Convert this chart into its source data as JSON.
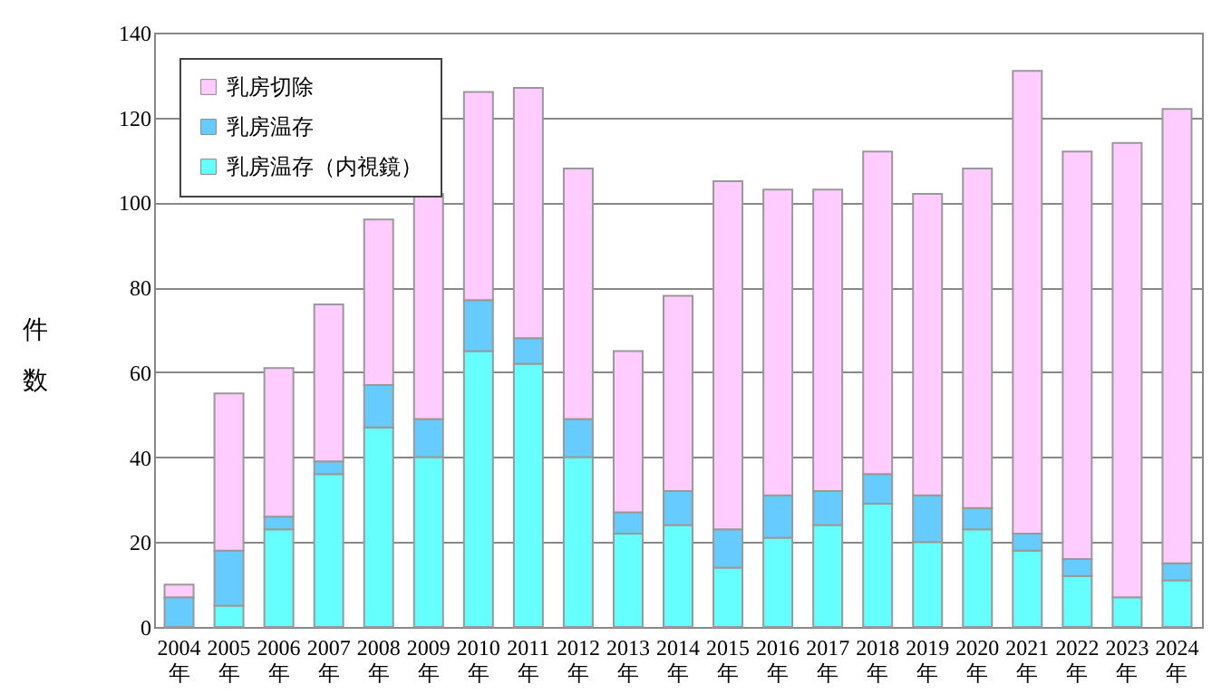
{
  "chart_data": {
    "type": "bar",
    "ylabel": "件数",
    "stacked": true,
    "legend": "top left",
    "grid": "y",
    "categories": [
      "2004年",
      "2005年",
      "2006年",
      "2007年",
      "2008年",
      "2009年",
      "2010年",
      "2011年",
      "2012年",
      "2013年",
      "2014年",
      "2015年",
      "2016年",
      "2017年",
      "2018年",
      "2019年",
      "2020年",
      "2021年",
      "2022年",
      "2023年",
      "2024年"
    ],
    "series": [
      {
        "name": "乳房温存（内視鏡）",
        "color": "#66ffff",
        "values": [
          null,
          5,
          23,
          36,
          47,
          40,
          65,
          62,
          40,
          22,
          24,
          14,
          21,
          24,
          29,
          20,
          23,
          18,
          12,
          7,
          11
        ]
      },
      {
        "name": "乳房温存",
        "color": "#66ccff",
        "values": [
          7,
          13,
          3,
          3,
          10,
          9,
          12,
          6,
          9,
          5,
          8,
          9,
          10,
          8,
          7,
          11,
          5,
          4,
          4,
          null,
          4
        ]
      },
      {
        "name": "乳房切除",
        "color": "#ffccff",
        "values": [
          3,
          37,
          35,
          37,
          39,
          53,
          49,
          59,
          59,
          38,
          46,
          82,
          72,
          71,
          76,
          71,
          80,
          109,
          96,
          107,
          107
        ]
      }
    ],
    "ylim": [
      0,
      140
    ],
    "yticks": [
      0,
      20,
      40,
      60,
      80,
      100,
      120,
      140
    ]
  }
}
